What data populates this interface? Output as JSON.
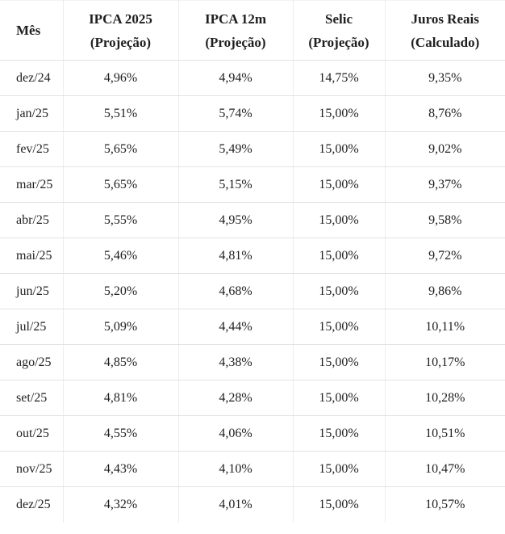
{
  "colors": {
    "text": "#1f1f1f",
    "border_horizontal": "#e2e2e2",
    "border_vertical": "#ededed",
    "background": "#ffffff"
  },
  "table": {
    "columns": [
      {
        "key": "mes",
        "line1": "Mês",
        "line2": ""
      },
      {
        "key": "ipca-2025",
        "line1": "IPCA 2025",
        "line2": "(Projeção)"
      },
      {
        "key": "ipca-12m",
        "line1": "IPCA 12m",
        "line2": "(Projeção)"
      },
      {
        "key": "selic",
        "line1": "Selic",
        "line2": "(Projeção)"
      },
      {
        "key": "juros-reais",
        "line1": "Juros Reais",
        "line2": "(Calculado)"
      }
    ]
  },
  "chart_data": {
    "type": "table",
    "columns": [
      "Mês",
      "IPCA 2025 (Projeção)",
      "IPCA 12m (Projeção)",
      "Selic (Projeção)",
      "Juros Reais (Calculado)"
    ],
    "rows": [
      [
        "dez/24",
        "4,96%",
        "4,94%",
        "14,75%",
        "9,35%"
      ],
      [
        "jan/25",
        "5,51%",
        "5,74%",
        "15,00%",
        "8,76%"
      ],
      [
        "fev/25",
        "5,65%",
        "5,49%",
        "15,00%",
        "9,02%"
      ],
      [
        "mar/25",
        "5,65%",
        "5,15%",
        "15,00%",
        "9,37%"
      ],
      [
        "abr/25",
        "5,55%",
        "4,95%",
        "15,00%",
        "9,58%"
      ],
      [
        "mai/25",
        "5,46%",
        "4,81%",
        "15,00%",
        "9,72%"
      ],
      [
        "jun/25",
        "5,20%",
        "4,68%",
        "15,00%",
        "9,86%"
      ],
      [
        "jul/25",
        "5,09%",
        "4,44%",
        "15,00%",
        "10,11%"
      ],
      [
        "ago/25",
        "4,85%",
        "4,38%",
        "15,00%",
        "10,17%"
      ],
      [
        "set/25",
        "4,81%",
        "4,28%",
        "15,00%",
        "10,28%"
      ],
      [
        "out/25",
        "4,55%",
        "4,06%",
        "15,00%",
        "10,51%"
      ],
      [
        "nov/25",
        "4,43%",
        "4,10%",
        "15,00%",
        "10,47%"
      ],
      [
        "dez/25",
        "4,32%",
        "4,01%",
        "15,00%",
        "10,57%"
      ]
    ],
    "x_categories": [
      "dez/24",
      "jan/25",
      "fev/25",
      "mar/25",
      "abr/25",
      "mai/25",
      "jun/25",
      "jul/25",
      "ago/25",
      "set/25",
      "out/25",
      "nov/25",
      "dez/25"
    ],
    "series": [
      {
        "name": "IPCA 2025 (Projeção)",
        "values": [
          4.96,
          5.51,
          5.65,
          5.65,
          5.55,
          5.46,
          5.2,
          5.09,
          4.85,
          4.81,
          4.55,
          4.43,
          4.32
        ]
      },
      {
        "name": "IPCA 12m (Projeção)",
        "values": [
          4.94,
          5.74,
          5.49,
          5.15,
          4.95,
          4.81,
          4.68,
          4.44,
          4.38,
          4.28,
          4.06,
          4.1,
          4.01
        ]
      },
      {
        "name": "Selic (Projeção)",
        "values": [
          14.75,
          15.0,
          15.0,
          15.0,
          15.0,
          15.0,
          15.0,
          15.0,
          15.0,
          15.0,
          15.0,
          15.0,
          15.0
        ]
      },
      {
        "name": "Juros Reais (Calculado)",
        "values": [
          9.35,
          8.76,
          9.02,
          9.37,
          9.58,
          9.72,
          9.86,
          10.11,
          10.17,
          10.28,
          10.51,
          10.47,
          10.57
        ]
      }
    ],
    "title": "",
    "value_unit": "%"
  }
}
